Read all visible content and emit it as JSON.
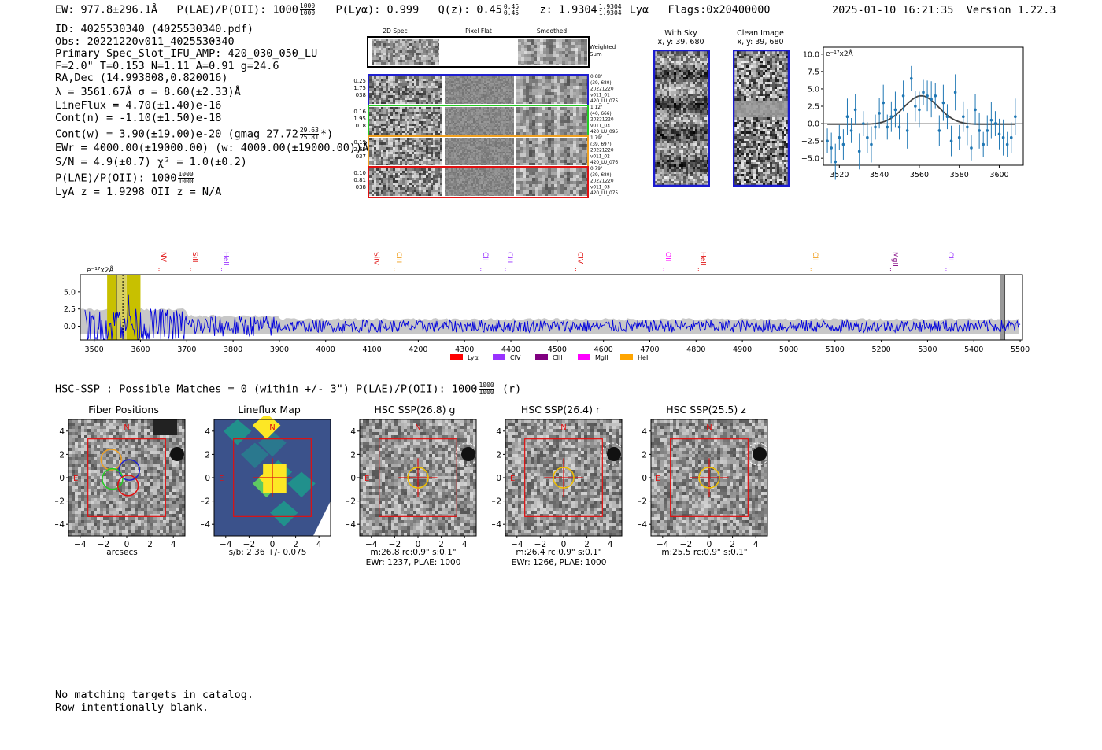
{
  "header": {
    "ew": "EW: 977.8±296.1Å",
    "plae_label": "P(LAE)/P(OII): 1000",
    "plae_hi": "1000",
    "plae_lo": "1000",
    "plya": "P(Lyα): 0.999",
    "qz_label": "Q(z): 0.45",
    "qz_hi": "0.45",
    "qz_lo": "0.45",
    "z_label": "z: 1.9304",
    "z_hi": "1.9304",
    "z_lo": "1.9304",
    "z_line": "Lyα",
    "flags": "Flags:0x20400000",
    "timestamp": "2025-01-10 16:21:35",
    "version": "Version 1.22.3"
  },
  "info": {
    "id": "ID: 4025530340 (4025530340.pdf)",
    "obs": "Obs: 20221220v011_4025530340",
    "primary": "Primary Spec_Slot_IFU_AMP: 420_030_050_LU",
    "fit": "F=2.0\"  T=0.153  N=1.11  A=0.91  g=24.6",
    "radec": "RA,Dec (14.993808,0.820016)",
    "lambda": "λ = 3561.67Å   σ = 8.60(±2.33)Å",
    "lineflux": "LineFlux = 4.70(±1.40)e-16",
    "contn": "Cont(n) = -1.10(±1.50)e-18",
    "contw": "Cont(w) = 3.90(±19.00)e-20 (gmag 27.72",
    "contw_hi": "29.63",
    "contw_lo": "25.81",
    "contw_end": "*)",
    "ewr": "EWr = 4000.00(±19000.00) (w: 4000.00(±19000.00))Å",
    "sn": "S/N = 4.9(±0.7)  χ² = 1.0(±0.2)",
    "plae": "P(LAE)/P(OII): 1000",
    "plae_hi": "1000",
    "plae_lo": "1000",
    "lya": "LyA z = 1.9298  OII z = N/A"
  },
  "fiber_panel": {
    "col_titles": [
      "2D Spec",
      "Pixel Flat",
      "Smoothed"
    ],
    "weighted_label": "Weighted\nSum",
    "rows": [
      {
        "left": [
          "0.25",
          "1.75",
          "038"
        ],
        "right": [
          "0.68\"",
          "(39, 680)",
          "20221220",
          "v011_01",
          "420_LU_075"
        ],
        "color": "#1f1fd0"
      },
      {
        "left": [
          "0.16",
          "1.95",
          "018"
        ],
        "right": [
          "1.12\"",
          "(40, 666)",
          "20221220",
          "v011_03",
          "420_LU_095"
        ],
        "color": "#22cc22"
      },
      {
        "left": [
          "0.19",
          "2.65",
          "037"
        ],
        "right": [
          "1.79\"",
          "(39, 697)",
          "20221220",
          "v011_02",
          "420_LU_076"
        ],
        "color": "#f0a020"
      },
      {
        "left": [
          "0.10",
          "0.81",
          "038"
        ],
        "right": [
          "0.79\"",
          "(39, 680)",
          "20221220",
          "v011_03",
          "420_LU_075"
        ],
        "color": "#e01010"
      }
    ]
  },
  "sky_panel": {
    "with_sky_title": "With Sky",
    "with_sky_coords": "x, y: 39, 680",
    "clean_title": "Clean Image",
    "clean_coords": "x, y: 39, 680"
  },
  "fit_plot": {
    "unit": "e⁻¹⁷x2Å",
    "yticks": [
      "10.0",
      "7.5",
      "5.0",
      "2.5",
      "0.0",
      "−2.5",
      "−5.0"
    ],
    "xticks": [
      "3520",
      "3540",
      "3560",
      "3580",
      "3600"
    ]
  },
  "full_spectrum": {
    "unit": "e⁻¹⁷x2Å",
    "yticks": [
      "5.0",
      "2.5",
      "0.0"
    ],
    "xticks": [
      "3500",
      "3600",
      "3700",
      "3800",
      "3900",
      "4000",
      "4100",
      "4200",
      "4300",
      "4400",
      "4500",
      "4600",
      "4700",
      "4800",
      "4900",
      "5000",
      "5100",
      "5200",
      "5300",
      "5400",
      "5500"
    ],
    "lines": [
      {
        "label": "NV",
        "x": 3640,
        "color": "#e01010"
      },
      {
        "label": "SiII",
        "x": 3708,
        "color": "#e01010"
      },
      {
        "label": "HeII",
        "x": 3775,
        "color": "#9933ff"
      },
      {
        "label": "SiIV",
        "x": 4100,
        "color": "#e01010"
      },
      {
        "label": "CIII",
        "x": 4148,
        "color": "#f0a020"
      },
      {
        "label": "CII",
        "x": 4335,
        "color": "#9933ff"
      },
      {
        "label": "CIII",
        "x": 4388,
        "color": "#9933ff"
      },
      {
        "label": "CIV",
        "x": 4540,
        "color": "#e01010"
      },
      {
        "label": "OII",
        "x": 4730,
        "color": "#ff00ff"
      },
      {
        "label": "HeII",
        "x": 4805,
        "color": "#e01010"
      },
      {
        "label": "CII",
        "x": 5048,
        "color": "#f0a020"
      },
      {
        "label": "MgII",
        "x": 5220,
        "color": "#800080"
      },
      {
        "label": "CII",
        "x": 5340,
        "color": "#9933ff"
      }
    ],
    "legend": [
      {
        "label": "Lyα",
        "color": "#ff0000"
      },
      {
        "label": "CIV",
        "color": "#9933ff"
      },
      {
        "label": "CIII",
        "color": "#800080"
      },
      {
        "label": "MgII",
        "color": "#ff00ff"
      },
      {
        "label": "HeII",
        "color": "#ffa500"
      }
    ]
  },
  "catalog": {
    "label": "HSC-SSP : Possible Matches = 0 (within +/- 3\")  P(LAE)/P(OII): 1000",
    "hi": "1000",
    "lo": "1000",
    "band": "(r)"
  },
  "cutouts": [
    {
      "title": "Fiber Positions",
      "cap1": "arcsecs",
      "cap2": ""
    },
    {
      "title": "Lineflux Map",
      "cap1": "s/b: 2.36 +/- 0.075",
      "cap2": ""
    },
    {
      "title": "HSC SSP(26.8) g",
      "cap1": "m:26.8 rc:0.9\"  s:0.1\"",
      "cap2": "EWr: 1237, PLAE: 1000"
    },
    {
      "title": "HSC SSP(26.4) r",
      "cap1": "m:26.4 rc:0.9\"  s:0.1\"",
      "cap2": "EWr: 1266, PLAE: 1000"
    },
    {
      "title": "HSC SSP(25.5) z",
      "cap1": "m:25.5 rc:0.9\"  s:0.1\"",
      "cap2": ""
    }
  ],
  "cutout_axes": {
    "yticks": [
      "4",
      "2",
      "0",
      "−2",
      "−4"
    ],
    "xticks": [
      "−4",
      "−2",
      "0",
      "2",
      "4"
    ],
    "north": "N",
    "east": "E"
  },
  "footer": {
    "line1": "No matching targets in catalog.",
    "line2": "Row intentionally blank."
  },
  "chart_data": [
    {
      "type": "scatter",
      "title": "",
      "ylabel": "e⁻¹⁷x2Å",
      "xlim": [
        3512,
        3612
      ],
      "ylim": [
        -6,
        11
      ],
      "x": [
        3514,
        3516,
        3518,
        3520,
        3522,
        3524,
        3526,
        3528,
        3530,
        3532,
        3534,
        3536,
        3538,
        3540,
        3542,
        3544,
        3546,
        3548,
        3550,
        3552,
        3554,
        3556,
        3558,
        3560,
        3562,
        3564,
        3566,
        3568,
        3570,
        3572,
        3574,
        3576,
        3578,
        3580,
        3582,
        3584,
        3586,
        3588,
        3590,
        3592,
        3594,
        3596,
        3598,
        3600,
        3602,
        3604,
        3606,
        3608
      ],
      "y": [
        -2.5,
        -3.5,
        -5.5,
        -2,
        -3,
        1,
        -1,
        2,
        -4,
        0,
        -2,
        -3,
        -0.5,
        1.5,
        3,
        -0.5,
        1,
        2,
        -0.5,
        4,
        -1,
        6.5,
        2.5,
        2,
        4.5,
        4,
        3.5,
        4,
        -1,
        3,
        1,
        -2.5,
        4.5,
        -2,
        1,
        -0.5,
        -3.5,
        2,
        -1,
        -3,
        -1,
        0.5,
        0,
        -1.5,
        -2,
        -3,
        -2,
        1
      ],
      "fit_curve": {
        "center": 3561,
        "sigma": 8.6,
        "amp": 4.1,
        "base": -0.1
      }
    },
    {
      "type": "line",
      "title": "",
      "xlim": [
        3500,
        5500
      ],
      "ylim": [
        -2,
        7
      ],
      "series": [
        {
          "name": "",
          "color": "#0000dd",
          "values_note": "noise-like spectrum centered near 0 with peak near 3560-3640"
        }
      ]
    }
  ]
}
